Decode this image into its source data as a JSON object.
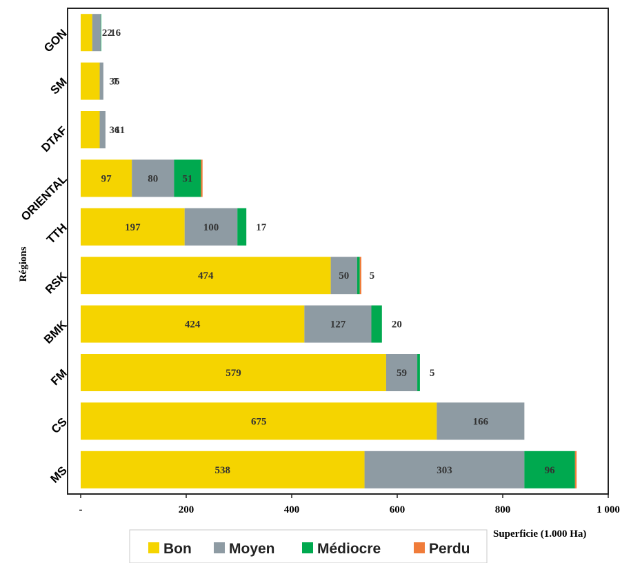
{
  "chart_data": {
    "type": "bar",
    "orientation": "horizontal",
    "stacked": true,
    "categories": [
      "GON",
      "SM",
      "DTAF",
      "ORIENTAL",
      "TTH",
      "RSK",
      "BMK",
      "FM",
      "CS",
      "MS"
    ],
    "series": [
      {
        "name": "Bon",
        "color": "#F5D400",
        "values": [
          22,
          36,
          36,
          97,
          197,
          474,
          424,
          579,
          675,
          538
        ]
      },
      {
        "name": "Moyen",
        "color": "#8E9BA3",
        "values": [
          16,
          7,
          11,
          80,
          100,
          50,
          127,
          59,
          166,
          303
        ]
      },
      {
        "name": "Médiocre",
        "color": "#00A94F",
        "values": [
          1,
          0,
          0,
          51,
          17,
          5,
          20,
          5,
          0,
          96
        ]
      },
      {
        "name": "Perdu",
        "color": "#F07C3A",
        "values": [
          0,
          0,
          0,
          3,
          0,
          3,
          0,
          0,
          0,
          3
        ]
      }
    ],
    "data_labels": [
      {
        "category": "GON",
        "labels": [
          "22",
          "16",
          "",
          ""
        ]
      },
      {
        "category": "SM",
        "labels": [
          "36",
          "7",
          "",
          ""
        ]
      },
      {
        "category": "DTAF",
        "labels": [
          "36",
          "11",
          "",
          ""
        ]
      },
      {
        "category": "ORIENTAL",
        "labels": [
          "97",
          "80",
          "51",
          ""
        ]
      },
      {
        "category": "TTH",
        "labels": [
          "197",
          "100",
          "17",
          ""
        ]
      },
      {
        "category": "RSK",
        "labels": [
          "474",
          "50",
          "5",
          ""
        ]
      },
      {
        "category": "BMK",
        "labels": [
          "424",
          "127",
          "20",
          ""
        ]
      },
      {
        "category": "FM",
        "labels": [
          "579",
          "59",
          "5",
          ""
        ]
      },
      {
        "category": "CS",
        "labels": [
          "675",
          "166",
          "",
          ""
        ]
      },
      {
        "category": "MS",
        "labels": [
          "538",
          "303",
          "96",
          ""
        ]
      }
    ],
    "xlim": [
      0,
      1000
    ],
    "x_ticks": [
      0,
      200,
      400,
      600,
      800,
      1000
    ],
    "x_tick_labels": [
      "-",
      "200",
      "400",
      "600",
      "800",
      "1 000"
    ],
    "xlabel": "Superficie (1.000 Ha)",
    "ylabel": "Régions",
    "grid": false,
    "legend_position": "bottom"
  }
}
